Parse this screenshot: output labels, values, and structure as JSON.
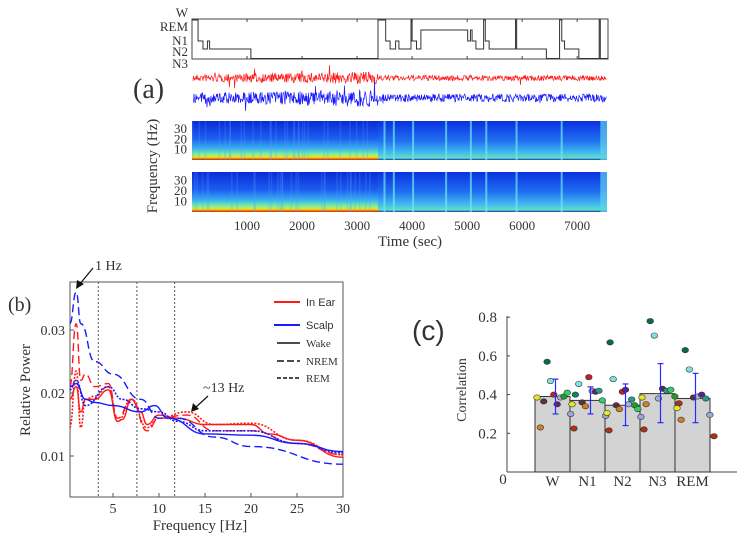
{
  "panel_labels": {
    "a": "(a)",
    "b": "(b)",
    "c": "(c)"
  },
  "colors": {
    "in_ear": "#ff1a1a",
    "scalp": "#1a1aff",
    "bar": "#d3d3d3",
    "error": "#2a2aff"
  },
  "chart_data": [
    {
      "type": "line",
      "name": "hypnogram",
      "stage_labels": [
        "W",
        "REM",
        "N1",
        "N2",
        "N3"
      ],
      "xlim": [
        0,
        7560
      ],
      "steps": [
        [
          0,
          "W"
        ],
        [
          110,
          "N1"
        ],
        [
          200,
          "N2"
        ],
        [
          280,
          "N1"
        ],
        [
          320,
          "N2"
        ],
        [
          1070,
          "N3"
        ],
        [
          3380,
          "W"
        ],
        [
          3520,
          "N1"
        ],
        [
          3600,
          "N2"
        ],
        [
          3700,
          "N1"
        ],
        [
          3760,
          "N2"
        ],
        [
          3980,
          "W"
        ],
        [
          4000,
          "N1"
        ],
        [
          4080,
          "N2"
        ],
        [
          4160,
          "REM"
        ],
        [
          5010,
          "N1"
        ],
        [
          5060,
          "REM"
        ],
        [
          5090,
          "N1"
        ],
        [
          5160,
          "N2"
        ],
        [
          5300,
          "W"
        ],
        [
          5330,
          "N1"
        ],
        [
          5400,
          "N2"
        ],
        [
          5880,
          "W"
        ],
        [
          5900,
          "N2"
        ],
        [
          6440,
          "N3"
        ],
        [
          6680,
          "W"
        ],
        [
          6720,
          "N1"
        ],
        [
          6770,
          "N2"
        ],
        [
          7030,
          "N3"
        ],
        [
          7400,
          "W"
        ],
        [
          7420,
          "N3"
        ]
      ]
    },
    {
      "type": "line",
      "name": "eeg-traces",
      "series": [
        {
          "name": "In Ear",
          "color": "#ff1a1a"
        },
        {
          "name": "Scalp",
          "color": "#1a1aff"
        }
      ]
    },
    {
      "type": "heatmap",
      "name": "spectrograms",
      "ylabel": "Frequency (Hz)",
      "yticks": [
        "30",
        "20",
        "10"
      ],
      "xlabel": "Time (sec)",
      "xticks": [
        1000,
        2000,
        3000,
        4000,
        5000,
        6000,
        7000
      ],
      "xlim": [
        0,
        7560
      ],
      "ylim": [
        0,
        38
      ],
      "sleep_period_end_sec": 3380
    },
    {
      "type": "line",
      "name": "relative-power-spectrum",
      "xlabel": "Frequency [Hz]",
      "ylabel": "Relative Power",
      "xlim": [
        0.3,
        30
      ],
      "ylim": [
        0.0035,
        0.0376
      ],
      "xticks": [
        5,
        10,
        15,
        20,
        25,
        30
      ],
      "yticks": [
        0.01,
        0.02,
        0.03
      ],
      "band_lines_hz": [
        3.4,
        7.6,
        11.7
      ],
      "annotations": [
        {
          "text": "1 Hz",
          "x": 1,
          "y": 0.036
        },
        {
          "text": "~13 Hz",
          "x": 13.5,
          "y": 0.0168
        }
      ],
      "legend": {
        "position": "top-right",
        "entries": [
          "In Ear",
          "Scalp",
          "Wake",
          "NREM",
          "REM"
        ]
      },
      "series": [
        {
          "name": "In Ear Wake",
          "color": "#ff1a1a",
          "style": "solid",
          "x": [
            0.3,
            1,
            1.5,
            2,
            3,
            4.5,
            5.5,
            6,
            7,
            8,
            8.7,
            10,
            12,
            15,
            20,
            22,
            25,
            30
          ],
          "y": [
            0.019,
            0.021,
            0.017,
            0.019,
            0.019,
            0.0205,
            0.0155,
            0.0158,
            0.019,
            0.017,
            0.015,
            0.0165,
            0.016,
            0.015,
            0.015,
            0.0135,
            0.0125,
            0.0098
          ]
        },
        {
          "name": "In Ear NREM",
          "color": "#ff1a1a",
          "style": "dashed",
          "x": [
            0.3,
            1,
            1.5,
            2,
            3,
            4.5,
            5.5,
            7,
            8.7,
            10,
            13,
            16,
            20,
            25,
            30
          ],
          "y": [
            0.021,
            0.031,
            0.022,
            0.023,
            0.021,
            0.0215,
            0.016,
            0.019,
            0.014,
            0.016,
            0.0165,
            0.014,
            0.014,
            0.012,
            0.0102
          ]
        },
        {
          "name": "In Ear REM",
          "color": "#ff1a1a",
          "style": "dotted",
          "x": [
            0.3,
            1,
            1.5,
            2,
            3,
            4.5,
            5.5,
            7,
            8.7,
            10,
            13,
            16,
            20,
            25,
            30
          ],
          "y": [
            0.0145,
            0.0235,
            0.0145,
            0.019,
            0.0195,
            0.021,
            0.0155,
            0.019,
            0.0145,
            0.016,
            0.017,
            0.015,
            0.0152,
            0.0125,
            0.0102
          ]
        },
        {
          "name": "Scalp Wake",
          "color": "#1a1aff",
          "style": "solid",
          "x": [
            0.3,
            1,
            2,
            3,
            5,
            8,
            9.5,
            11,
            15,
            20,
            25,
            30
          ],
          "y": [
            0.021,
            0.0215,
            0.019,
            0.0185,
            0.018,
            0.017,
            0.018,
            0.016,
            0.0135,
            0.0133,
            0.012,
            0.0107
          ]
        },
        {
          "name": "Scalp NREM",
          "color": "#1a1aff",
          "style": "dashed",
          "x": [
            0.3,
            1,
            1.5,
            3,
            5,
            8,
            10,
            12,
            16,
            20,
            30
          ],
          "y": [
            0.031,
            0.036,
            0.031,
            0.025,
            0.023,
            0.019,
            0.016,
            0.016,
            0.013,
            0.0115,
            0.0087
          ]
        },
        {
          "name": "Scalp REM",
          "color": "#1a1aff",
          "style": "dotted",
          "x": [
            0.3,
            1,
            2,
            4.5,
            6,
            8,
            10,
            12,
            15,
            20,
            25,
            30
          ],
          "y": [
            0.0205,
            0.022,
            0.018,
            0.021,
            0.019,
            0.0175,
            0.017,
            0.0155,
            0.014,
            0.014,
            0.012,
            0.0105
          ]
        }
      ]
    },
    {
      "type": "bar",
      "name": "correlation-by-stage",
      "ylabel": "Correlation",
      "ylim": [
        0,
        0.8
      ],
      "yticks": [
        "0.2",
        "0.4",
        "0.6",
        "0.8"
      ],
      "origin_label": "0",
      "categories": [
        "W",
        "N1",
        "N2",
        "N3",
        "REM"
      ],
      "values": [
        0.39,
        0.37,
        0.345,
        0.405,
        0.38
      ],
      "error_low": [
        0.3,
        0.3,
        0.24,
        0.255,
        0.255
      ],
      "error_high": [
        0.48,
        0.44,
        0.455,
        0.56,
        0.51
      ],
      "points": [
        [
          [
            0.385,
            "#e8e820"
          ],
          [
            0.23,
            "#d08020"
          ],
          [
            0.365,
            "#5a3040"
          ],
          [
            0.57,
            "#0a6b4a"
          ],
          [
            0.47,
            "#7fe0e8"
          ],
          [
            0.4,
            "#c0202a"
          ],
          [
            0.35,
            "#602080"
          ],
          [
            0.385,
            "#a0b0e0"
          ],
          [
            0.39,
            "#1fa01f"
          ],
          [
            0.41,
            "#2fcf6f"
          ],
          [
            0.3,
            "#9aa8d8"
          ],
          [
            0.225,
            "#b03010"
          ]
        ],
        [
          [
            0.35,
            "#e8e820"
          ],
          [
            0.4,
            "#0a8a5a"
          ],
          [
            0.455,
            "#7fe0e8"
          ],
          [
            0.36,
            "#5a3040"
          ],
          [
            0.34,
            "#d08020"
          ],
          [
            0.49,
            "#c0202a"
          ],
          [
            0.42,
            "#a0b0e0"
          ],
          [
            0.415,
            "#602080"
          ],
          [
            0.42,
            "#2a9a8a"
          ],
          [
            0.37,
            "#2fcf6f"
          ],
          [
            0.29,
            "#9aa8d8"
          ],
          [
            0.215,
            "#b03010"
          ]
        ],
        [
          [
            0.305,
            "#e8e820"
          ],
          [
            0.67,
            "#0a6b4a"
          ],
          [
            0.48,
            "#7fe0e8"
          ],
          [
            0.345,
            "#5a3040"
          ],
          [
            0.325,
            "#d08020"
          ],
          [
            0.415,
            "#c0202a"
          ],
          [
            0.425,
            "#602080"
          ],
          [
            0.35,
            "#a0b0e0"
          ],
          [
            0.375,
            "#2a9a8a"
          ],
          [
            0.345,
            "#1fa01f"
          ],
          [
            0.325,
            "#2fcf6f"
          ],
          [
            0.285,
            "#9aa8d8"
          ],
          [
            0.22,
            "#b03010"
          ]
        ],
        [
          [
            0.385,
            "#e8e820"
          ],
          [
            0.35,
            "#d08020"
          ],
          [
            0.78,
            "#0a6b4a"
          ],
          [
            0.705,
            "#7fe0e8"
          ],
          [
            0.38,
            "#a0b0e0"
          ],
          [
            0.43,
            "#5a3040"
          ],
          [
            0.42,
            "#2a9a8a"
          ],
          [
            0.425,
            "#2fcf6f"
          ],
          [
            0.39,
            "#1fa01f"
          ],
          [
            0.355,
            "#b03010"
          ]
        ],
        [
          [
            0.33,
            "#e8e820"
          ],
          [
            0.27,
            "#d08020"
          ],
          [
            0.63,
            "#0a6b4a"
          ],
          [
            0.53,
            "#7fe0e8"
          ],
          [
            0.385,
            "#5a3040"
          ],
          [
            0.39,
            "#a0b0e0"
          ],
          [
            0.4,
            "#602080"
          ],
          [
            0.38,
            "#2a9a8a"
          ],
          [
            0.295,
            "#9aa8d8"
          ],
          [
            0.185,
            "#b03010"
          ]
        ]
      ]
    }
  ]
}
